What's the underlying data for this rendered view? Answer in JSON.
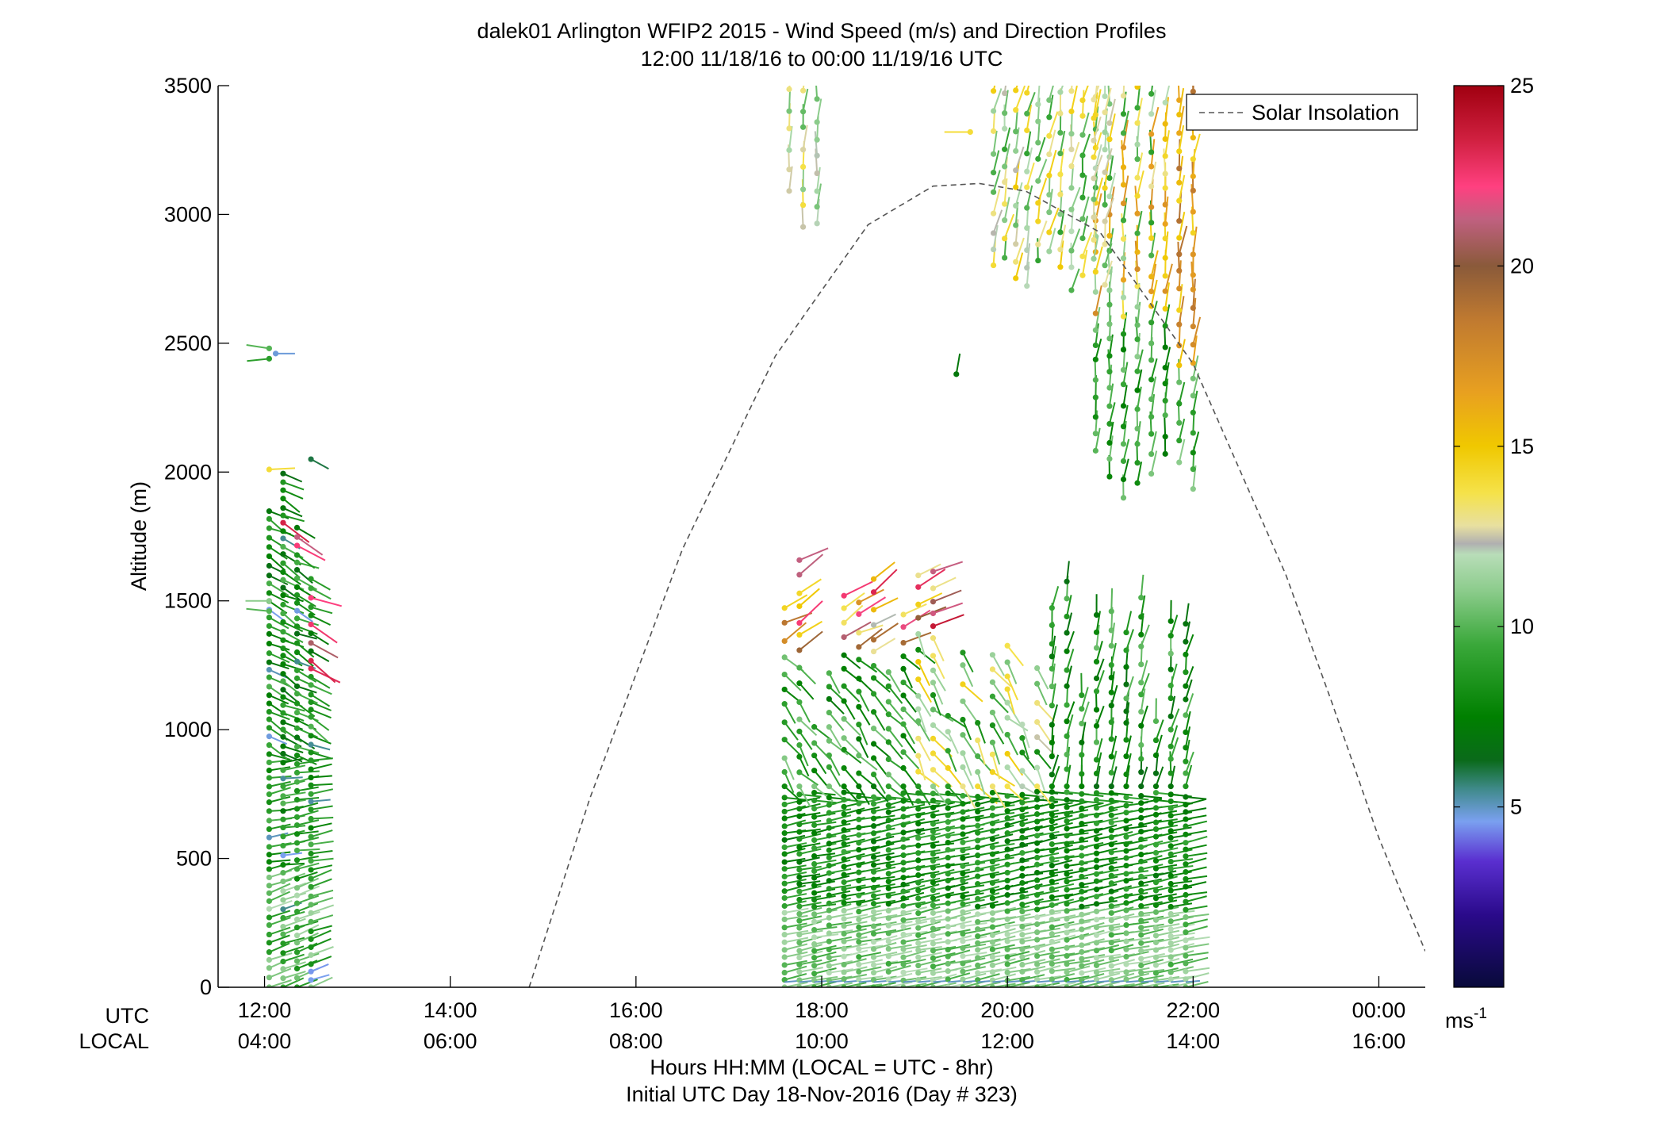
{
  "chart_data": {
    "type": "scatter",
    "title": "dalek01 Arlington WFIP2 2015 - Wind Speed (m/s) and Direction Profiles",
    "subtitle": "12:00 11/18/16 to 00:00 11/19/16  UTC",
    "ylabel": "Altitude (m)",
    "xlabel": "Hours HH:MM  (LOCAL = UTC - 8hr)",
    "xlabel2": "Initial UTC Day 18-Nov-2016 (Day # 323)",
    "row_label_utc": "UTC",
    "row_label_local": "LOCAL",
    "ylim": [
      0,
      3500
    ],
    "xlim_hours": [
      11.5,
      24.5
    ],
    "y_ticks": [
      0,
      500,
      1000,
      1500,
      2000,
      2500,
      3000,
      3500
    ],
    "x_ticks_hours": [
      12,
      14,
      16,
      18,
      20,
      22,
      24
    ],
    "x_tick_labels_utc": [
      "12:00",
      "14:00",
      "16:00",
      "18:00",
      "20:00",
      "22:00",
      "00:00"
    ],
    "x_tick_labels_local": [
      "04:00",
      "06:00",
      "08:00",
      "10:00",
      "12:00",
      "14:00",
      "16:00"
    ],
    "legend": {
      "label": "Solar Insolation",
      "placement": "top-right"
    },
    "solar_insolation_curve": {
      "x_hours": [
        14.85,
        15.5,
        16.5,
        17.5,
        18.5,
        19.2,
        19.7,
        20.2,
        21.0,
        22.0,
        23.0,
        23.5,
        24.0,
        24.5
      ],
      "altitude_m": [
        0,
        730,
        1700,
        2450,
        2960,
        3110,
        3120,
        3090,
        2930,
        2420,
        1600,
        1100,
        580,
        140
      ]
    },
    "wind_profiles_observed_hours": [
      [
        12.05,
        12.3
      ],
      [
        12.3,
        12.6
      ],
      [
        12.6,
        12.85
      ],
      [
        17.6,
        22.1
      ]
    ],
    "colorbar": {
      "label": "ms",
      "label_superscript": "-1",
      "range": [
        0,
        25
      ],
      "ticks": [
        5,
        10,
        15,
        20,
        25
      ],
      "colormap_stops": [
        {
          "v": 0,
          "c": "#080a3a"
        },
        {
          "v": 2,
          "c": "#2a0a8a"
        },
        {
          "v": 3.5,
          "c": "#5a2fd0"
        },
        {
          "v": 4.6,
          "c": "#7aa0f0"
        },
        {
          "v": 5.5,
          "c": "#3f8a8a"
        },
        {
          "v": 6.3,
          "c": "#0a6a1a"
        },
        {
          "v": 7.5,
          "c": "#008000"
        },
        {
          "v": 9.5,
          "c": "#3aa83a"
        },
        {
          "v": 11,
          "c": "#8ccc8c"
        },
        {
          "v": 12,
          "c": "#b8ddb8"
        },
        {
          "v": 12.3,
          "c": "#b0b0b0"
        },
        {
          "v": 12.8,
          "c": "#e8e0a0"
        },
        {
          "v": 13.7,
          "c": "#f5e24a"
        },
        {
          "v": 15,
          "c": "#f0c800"
        },
        {
          "v": 16.5,
          "c": "#e8a020"
        },
        {
          "v": 18.5,
          "c": "#c07a30"
        },
        {
          "v": 20,
          "c": "#8a5a3a"
        },
        {
          "v": 21.3,
          "c": "#c06080"
        },
        {
          "v": 22.2,
          "c": "#ff4080"
        },
        {
          "v": 23.5,
          "c": "#d02040"
        },
        {
          "v": 25,
          "c": "#a00010"
        }
      ]
    }
  }
}
